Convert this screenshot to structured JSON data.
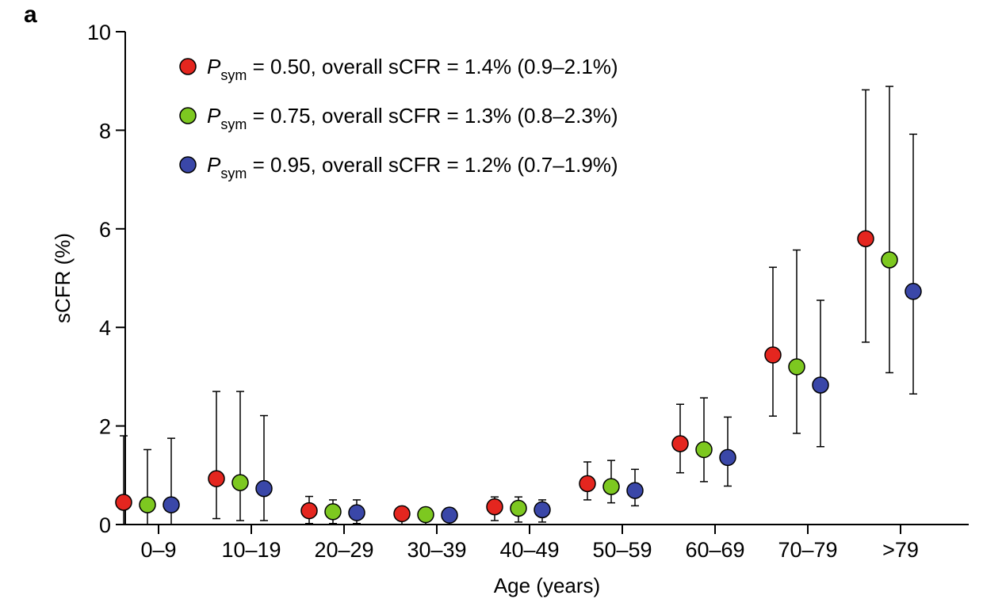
{
  "panel_label": "a",
  "chart_data": {
    "type": "scatter",
    "xlabel": "Age (years)",
    "ylabel": "sCFR (%)",
    "ylim": [
      0,
      10
    ],
    "yticks": [
      0,
      2,
      4,
      6,
      8,
      10
    ],
    "categories": [
      "0–9",
      "10–19",
      "20–29",
      "30–39",
      "40–49",
      "50–59",
      "60–69",
      "70–79",
      ">79"
    ],
    "legend_position": "top-left",
    "grid": false,
    "series": [
      {
        "legend": {
          "symbol": "P",
          "subscript": "sym",
          "text": " = 0.50, overall sCFR = 1.4% (0.9–2.1%)"
        },
        "color": "#e4261f",
        "values": [
          0.45,
          0.93,
          0.28,
          0.22,
          0.36,
          0.83,
          1.64,
          3.44,
          5.8
        ],
        "lower": [
          0.0,
          0.12,
          0.02,
          0.0,
          0.08,
          0.5,
          1.05,
          2.2,
          3.7
        ],
        "upper": [
          1.8,
          2.7,
          0.57,
          0.35,
          0.56,
          1.27,
          2.44,
          5.22,
          8.82
        ]
      },
      {
        "legend": {
          "symbol": "P",
          "subscript": "sym",
          "text": " = 0.75, overall sCFR = 1.3% (0.8–2.3%)"
        },
        "color": "#7dc820",
        "values": [
          0.4,
          0.85,
          0.26,
          0.2,
          0.33,
          0.77,
          1.52,
          3.2,
          5.37
        ],
        "lower": [
          0.0,
          0.08,
          0.02,
          0.0,
          0.05,
          0.44,
          0.87,
          1.85,
          3.08
        ],
        "upper": [
          1.52,
          2.7,
          0.5,
          0.33,
          0.56,
          1.3,
          2.57,
          5.57,
          8.89
        ]
      },
      {
        "legend": {
          "symbol": "P",
          "subscript": "sym",
          "text": " = 0.95, overall sCFR = 1.2% (0.7–1.9%)"
        },
        "color": "#3a47a8",
        "values": [
          0.4,
          0.73,
          0.24,
          0.19,
          0.3,
          0.69,
          1.36,
          2.83,
          4.73
        ],
        "lower": [
          0.0,
          0.08,
          0.02,
          0.0,
          0.05,
          0.38,
          0.78,
          1.58,
          2.65
        ],
        "upper": [
          1.75,
          2.21,
          0.5,
          0.33,
          0.5,
          1.12,
          2.18,
          4.55,
          7.92
        ]
      }
    ]
  }
}
